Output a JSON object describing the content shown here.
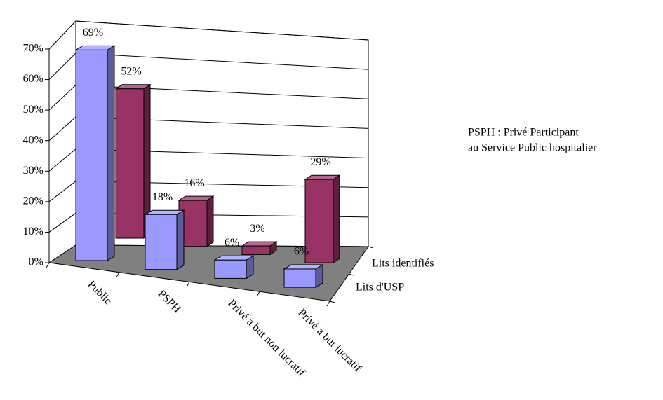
{
  "chart_data": {
    "type": "bar3d",
    "categories": [
      "Public",
      "PSPH",
      "Privé à but non lucratif",
      "Privé à but lucratif"
    ],
    "series": [
      {
        "name": "Lits d'USP",
        "color": "#9999ff",
        "values": [
          69,
          18,
          6,
          6
        ],
        "value_labels": [
          "69%",
          "18%",
          "6%",
          "6%"
        ]
      },
      {
        "name": "Lits identifiés",
        "color": "#993366",
        "values": [
          52,
          16,
          3,
          29
        ],
        "value_labels": [
          "52%",
          "16%",
          "3%",
          "29%"
        ]
      }
    ],
    "ylim": [
      0,
      70
    ],
    "yticks": [
      {
        "value": 0,
        "label": "0%"
      },
      {
        "value": 10,
        "label": "10%"
      },
      {
        "value": 20,
        "label": "20%"
      },
      {
        "value": 30,
        "label": "30%"
      },
      {
        "value": 40,
        "label": "40%"
      },
      {
        "value": 50,
        "label": "50%"
      },
      {
        "value": 60,
        "label": "60%"
      },
      {
        "value": 70,
        "label": "70%"
      }
    ],
    "annotation": [
      "PSPH : Privé Participant",
      "au Service Public hospitalier"
    ]
  }
}
